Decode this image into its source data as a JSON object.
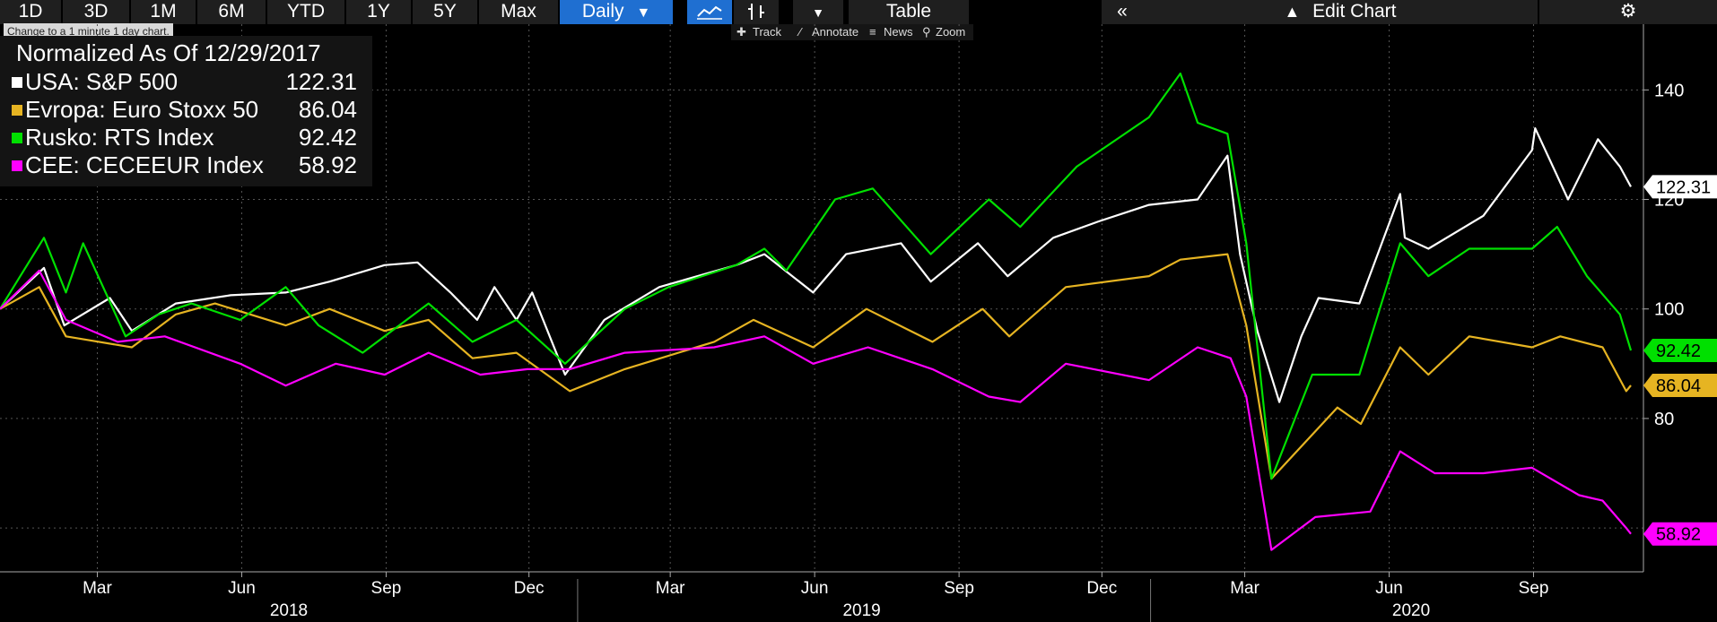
{
  "toolbar": {
    "periods": [
      "1D",
      "3D",
      "1M",
      "6M",
      "YTD",
      "1Y",
      "5Y",
      "Max"
    ],
    "frequency": "Daily",
    "table_label": "Table",
    "edit_chart_label": "Edit Chart",
    "tooltip": "Change to a 1 minute 1 day chart.",
    "subtools": [
      "Track",
      "Annotate",
      "News",
      "Zoom"
    ]
  },
  "chart_data": {
    "type": "line",
    "title": "Normalized As Of 12/29/2017",
    "x_range": [
      "2017-12-29",
      "2020-11-10"
    ],
    "ylim": [
      52,
      152
    ],
    "y_ticks": [
      80,
      100,
      120,
      140
    ],
    "month_ticks": [
      {
        "label": "Mar",
        "date": "2018-03-01"
      },
      {
        "label": "Jun",
        "date": "2018-06-01"
      },
      {
        "label": "Sep",
        "date": "2018-09-01"
      },
      {
        "label": "Dec",
        "date": "2018-12-01"
      },
      {
        "label": "Mar",
        "date": "2019-03-01"
      },
      {
        "label": "Jun",
        "date": "2019-06-01"
      },
      {
        "label": "Sep",
        "date": "2019-09-01"
      },
      {
        "label": "Dec",
        "date": "2019-12-01"
      },
      {
        "label": "Mar",
        "date": "2020-03-01"
      },
      {
        "label": "Jun",
        "date": "2020-06-01"
      },
      {
        "label": "Sep",
        "date": "2020-09-01"
      }
    ],
    "year_labels": [
      {
        "label": "2018",
        "date": "2018-07-01"
      },
      {
        "label": "2019",
        "date": "2019-07-01"
      },
      {
        "label": "2020",
        "date": "2020-06-15"
      }
    ],
    "year_separators": [
      "2019-01-01",
      "2020-01-01"
    ],
    "grid": true,
    "legend_position": "top-left",
    "series": [
      {
        "name": "USA: S&P 500",
        "last": "122.31",
        "color": "#ffffff",
        "points": [
          [
            "2017-12-29",
            100
          ],
          [
            "2018-01-26",
            107.5
          ],
          [
            "2018-02-08",
            97
          ],
          [
            "2018-03-09",
            102
          ],
          [
            "2018-03-23",
            96
          ],
          [
            "2018-04-20",
            101
          ],
          [
            "2018-05-25",
            102.5
          ],
          [
            "2018-06-29",
            103
          ],
          [
            "2018-07-27",
            105
          ],
          [
            "2018-08-31",
            108
          ],
          [
            "2018-09-21",
            108.5
          ],
          [
            "2018-10-12",
            103
          ],
          [
            "2018-10-29",
            98
          ],
          [
            "2018-11-09",
            104
          ],
          [
            "2018-11-23",
            98
          ],
          [
            "2018-12-03",
            103
          ],
          [
            "2018-12-24",
            88
          ],
          [
            "2019-01-18",
            98
          ],
          [
            "2019-02-22",
            104
          ],
          [
            "2019-04-12",
            108
          ],
          [
            "2019-04-30",
            110
          ],
          [
            "2019-05-31",
            103
          ],
          [
            "2019-06-21",
            110
          ],
          [
            "2019-07-26",
            112
          ],
          [
            "2019-08-14",
            105
          ],
          [
            "2019-09-13",
            112
          ],
          [
            "2019-10-02",
            106
          ],
          [
            "2019-10-31",
            113
          ],
          [
            "2019-11-29",
            116
          ],
          [
            "2019-12-31",
            119
          ],
          [
            "2020-01-31",
            120
          ],
          [
            "2020-02-19",
            128
          ],
          [
            "2020-02-27",
            110
          ],
          [
            "2020-03-09",
            96
          ],
          [
            "2020-03-23",
            83
          ],
          [
            "2020-04-06",
            95
          ],
          [
            "2020-04-17",
            102
          ],
          [
            "2020-05-13",
            101
          ],
          [
            "2020-06-08",
            121
          ],
          [
            "2020-06-11",
            113
          ],
          [
            "2020-06-26",
            111
          ],
          [
            "2020-07-31",
            117
          ],
          [
            "2020-08-31",
            129
          ],
          [
            "2020-09-02",
            133
          ],
          [
            "2020-09-23",
            120
          ],
          [
            "2020-10-12",
            131
          ],
          [
            "2020-10-26",
            126
          ],
          [
            "2020-11-02",
            122.31
          ]
        ]
      },
      {
        "name": "Evropa: Euro Stoxx 50",
        "last": "86.04",
        "color": "#e6b422",
        "points": [
          [
            "2017-12-29",
            100
          ],
          [
            "2018-01-23",
            104
          ],
          [
            "2018-02-09",
            95
          ],
          [
            "2018-03-23",
            93
          ],
          [
            "2018-04-20",
            99
          ],
          [
            "2018-05-15",
            101
          ],
          [
            "2018-06-29",
            97
          ],
          [
            "2018-07-27",
            100
          ],
          [
            "2018-08-31",
            96
          ],
          [
            "2018-09-28",
            98
          ],
          [
            "2018-10-26",
            91
          ],
          [
            "2018-11-23",
            92
          ],
          [
            "2018-12-27",
            85
          ],
          [
            "2019-01-31",
            89
          ],
          [
            "2019-03-29",
            94
          ],
          [
            "2019-04-23",
            98
          ],
          [
            "2019-05-31",
            93
          ],
          [
            "2019-07-04",
            100
          ],
          [
            "2019-08-15",
            94
          ],
          [
            "2019-09-16",
            100
          ],
          [
            "2019-10-03",
            95
          ],
          [
            "2019-11-08",
            104
          ],
          [
            "2019-12-31",
            106
          ],
          [
            "2020-01-20",
            109
          ],
          [
            "2020-02-19",
            110
          ],
          [
            "2020-03-02",
            97
          ],
          [
            "2020-03-18",
            69
          ],
          [
            "2020-04-29",
            82
          ],
          [
            "2020-05-14",
            79
          ],
          [
            "2020-06-08",
            93
          ],
          [
            "2020-06-26",
            88
          ],
          [
            "2020-07-22",
            95
          ],
          [
            "2020-08-31",
            93
          ],
          [
            "2020-09-18",
            95
          ],
          [
            "2020-10-15",
            93
          ],
          [
            "2020-10-30",
            85
          ],
          [
            "2020-11-02",
            86.04
          ]
        ]
      },
      {
        "name": "Rusko: RTS Index",
        "last": "92.42",
        "color": "#00e000",
        "points": [
          [
            "2017-12-29",
            100
          ],
          [
            "2018-01-26",
            113
          ],
          [
            "2018-02-09",
            103
          ],
          [
            "2018-02-20",
            112
          ],
          [
            "2018-03-19",
            95
          ],
          [
            "2018-04-09",
            99
          ],
          [
            "2018-04-30",
            101
          ],
          [
            "2018-05-31",
            98
          ],
          [
            "2018-06-29",
            104
          ],
          [
            "2018-07-20",
            97
          ],
          [
            "2018-08-17",
            92
          ],
          [
            "2018-09-28",
            101
          ],
          [
            "2018-10-26",
            94
          ],
          [
            "2018-11-23",
            98
          ],
          [
            "2018-12-24",
            90
          ],
          [
            "2019-01-31",
            100
          ],
          [
            "2019-02-28",
            104
          ],
          [
            "2019-04-12",
            108
          ],
          [
            "2019-04-30",
            111
          ],
          [
            "2019-05-14",
            107
          ],
          [
            "2019-06-14",
            120
          ],
          [
            "2019-07-08",
            122
          ],
          [
            "2019-08-14",
            110
          ],
          [
            "2019-09-20",
            120
          ],
          [
            "2019-10-10",
            115
          ],
          [
            "2019-11-15",
            126
          ],
          [
            "2019-12-31",
            135
          ],
          [
            "2020-01-20",
            143
          ],
          [
            "2020-01-31",
            134
          ],
          [
            "2020-02-19",
            132
          ],
          [
            "2020-03-02",
            112
          ],
          [
            "2020-03-18",
            69
          ],
          [
            "2020-04-13",
            88
          ],
          [
            "2020-05-13",
            88
          ],
          [
            "2020-06-08",
            112
          ],
          [
            "2020-06-26",
            106
          ],
          [
            "2020-07-22",
            111
          ],
          [
            "2020-08-31",
            111
          ],
          [
            "2020-09-16",
            115
          ],
          [
            "2020-10-05",
            106
          ],
          [
            "2020-10-26",
            99
          ],
          [
            "2020-11-02",
            92.42
          ]
        ]
      },
      {
        "name": "CEE: CECEEUR Index",
        "last": "58.92",
        "color": "#ff00ff",
        "points": [
          [
            "2017-12-29",
            100
          ],
          [
            "2018-01-23",
            107
          ],
          [
            "2018-02-09",
            98
          ],
          [
            "2018-03-14",
            94
          ],
          [
            "2018-04-13",
            95
          ],
          [
            "2018-05-31",
            90
          ],
          [
            "2018-06-29",
            86
          ],
          [
            "2018-07-31",
            90
          ],
          [
            "2018-08-31",
            88
          ],
          [
            "2018-09-28",
            92
          ],
          [
            "2018-10-31",
            88
          ],
          [
            "2018-11-30",
            89
          ],
          [
            "2018-12-27",
            89
          ],
          [
            "2019-01-31",
            92
          ],
          [
            "2019-03-29",
            93
          ],
          [
            "2019-04-30",
            95
          ],
          [
            "2019-05-31",
            90
          ],
          [
            "2019-07-05",
            93
          ],
          [
            "2019-08-15",
            89
          ],
          [
            "2019-09-20",
            84
          ],
          [
            "2019-10-10",
            83
          ],
          [
            "2019-11-08",
            90
          ],
          [
            "2019-12-31",
            87
          ],
          [
            "2020-01-31",
            93
          ],
          [
            "2020-02-21",
            91
          ],
          [
            "2020-03-02",
            84
          ],
          [
            "2020-03-18",
            56
          ],
          [
            "2020-04-15",
            62
          ],
          [
            "2020-05-20",
            63
          ],
          [
            "2020-06-08",
            74
          ],
          [
            "2020-06-30",
            70
          ],
          [
            "2020-07-31",
            70
          ],
          [
            "2020-08-31",
            71
          ],
          [
            "2020-09-30",
            66
          ],
          [
            "2020-10-15",
            65
          ],
          [
            "2020-10-30",
            60
          ],
          [
            "2020-11-02",
            58.92
          ]
        ]
      }
    ]
  }
}
